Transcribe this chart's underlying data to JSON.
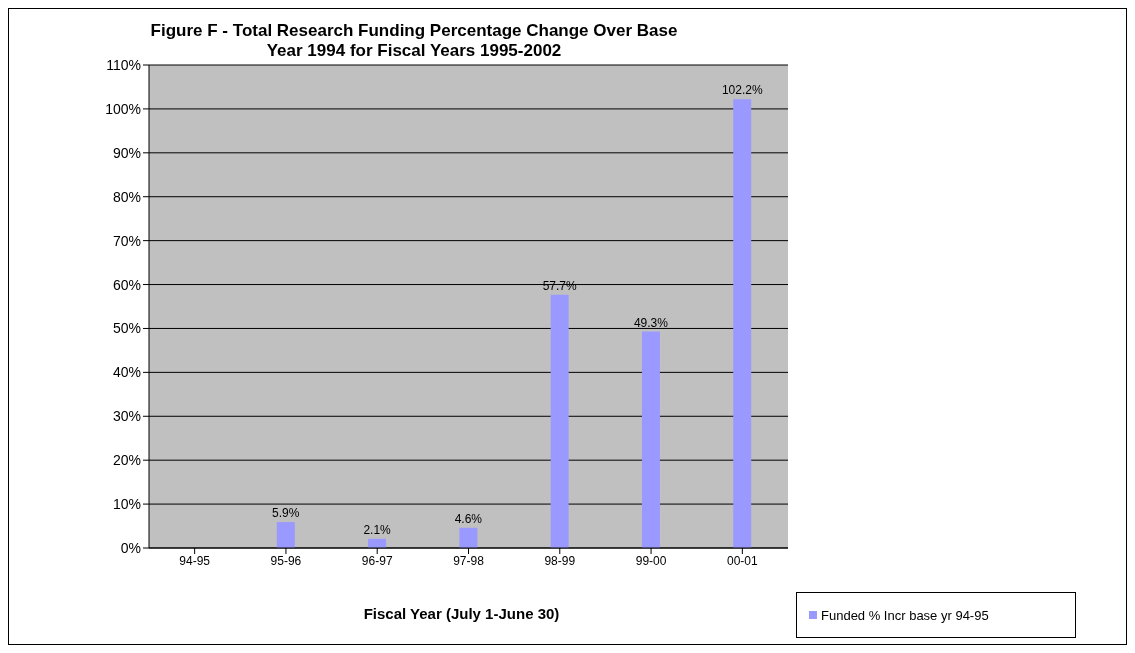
{
  "chart_data": {
    "type": "bar",
    "title": "Figure F - Total Research Funding Percentage Change Over Base Year 1994 for Fiscal Years 1995-2002",
    "xlabel": "Fiscal Year (July 1-June 30)",
    "categories": [
      "94-95",
      "95-96",
      "96-97",
      "97-98",
      "98-99",
      "99-00",
      "00-01"
    ],
    "series": [
      {
        "name": "Funded % Incr base yr 94-95",
        "color": "#9999ff",
        "values": [
          0,
          5.9,
          2.1,
          4.6,
          57.7,
          49.3,
          102.2
        ],
        "value_labels": [
          null,
          "5.9%",
          "2.1%",
          "4.6%",
          "57.7%",
          "49.3%",
          "102.2%"
        ]
      }
    ],
    "ylim": [
      0,
      110
    ],
    "yticks": [
      {
        "value": 0,
        "label": "0%"
      },
      {
        "value": 10,
        "label": "10%"
      },
      {
        "value": 20,
        "label": "20%"
      },
      {
        "value": 30,
        "label": "30%"
      },
      {
        "value": 40,
        "label": "40%"
      },
      {
        "value": 50,
        "label": "50%"
      },
      {
        "value": 60,
        "label": "60%"
      },
      {
        "value": 70,
        "label": "70%"
      },
      {
        "value": 80,
        "label": "80%"
      },
      {
        "value": 90,
        "label": "90%"
      },
      {
        "value": 100,
        "label": "100%"
      },
      {
        "value": 110,
        "label": "110%"
      }
    ],
    "grid": "y",
    "legend": "bottom right"
  }
}
